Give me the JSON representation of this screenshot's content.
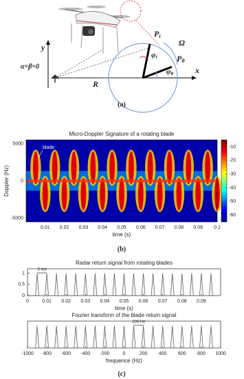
{
  "diagram": {
    "labels": {
      "y_axis": "y",
      "x_axis": "x",
      "angle": "α=β=0",
      "range": "R",
      "p_t": {
        "base": "P",
        "sub": "t"
      },
      "omega": "Ω",
      "p_theta": {
        "base": "P",
        "sub": "θ"
      },
      "phi_t": {
        "base": "φ",
        "sub": "t"
      },
      "phi_theta": {
        "base": "φ",
        "sub": "θ"
      }
    }
  },
  "captions": [
    "(a)",
    "(b)",
    "(c)"
  ],
  "chart_data": [
    {
      "type": "spectrogram",
      "title": "Micro-Doppler Signature of a rotating blade",
      "x_label": "time (s)",
      "y_label": "Doppler (Hz)",
      "annotation": "blade",
      "xlim": [
        0,
        0.1
      ],
      "xticks": [
        0.01,
        0.02,
        0.03,
        0.04,
        0.05,
        0.06,
        0.07,
        0.08,
        0.09,
        0.1
      ],
      "ylim": [
        -5500,
        5500
      ],
      "yticks": [
        -5000,
        0,
        5000
      ],
      "colorbar": {
        "lim": [
          -65,
          -5
        ],
        "ticks": [
          -60,
          -50,
          -40,
          -30,
          -20,
          -10
        ]
      }
    },
    {
      "type": "spikes",
      "title": "Radar return signal from rotating blades",
      "x_label": "time (s)",
      "annotation": "5 ms",
      "color": "#333333",
      "x": [
        0.005,
        0.01,
        0.015,
        0.02,
        0.025,
        0.03,
        0.035,
        0.04,
        0.045,
        0.05,
        0.055,
        0.06,
        0.065,
        0.07,
        0.075,
        0.08,
        0.085,
        0.09,
        0.095
      ],
      "values": [
        1,
        1,
        1,
        1,
        1,
        1,
        1,
        1,
        1,
        1,
        1,
        1,
        1,
        1,
        1,
        1,
        1,
        1,
        1
      ],
      "xlim": [
        0,
        0.1
      ],
      "xticks": [
        0,
        0.01,
        0.02,
        0.03,
        0.04,
        0.05,
        0.06,
        0.07,
        0.08,
        0.09
      ],
      "ylim": [
        0,
        1.2
      ],
      "yticks": [
        0,
        0.5,
        1
      ]
    },
    {
      "type": "spikes",
      "title": "Fourier transform of the blade return signal",
      "x_label": "frequence (Hz)",
      "annotation": "100 Hz",
      "color": "#333333",
      "x": [
        -900,
        -800,
        -700,
        -600,
        -500,
        -400,
        -300,
        -200,
        -100,
        0,
        100,
        200,
        300,
        400,
        500,
        600,
        700,
        800,
        900
      ],
      "values": [
        1,
        1,
        1,
        1,
        1,
        1,
        1,
        1,
        1,
        1,
        1,
        1,
        1,
        1,
        1,
        1,
        1,
        1,
        1
      ],
      "xlim": [
        -1000,
        1000
      ],
      "xticks": [
        -1000,
        -800,
        -600,
        -400,
        -200,
        0,
        200,
        400,
        600,
        800,
        1000
      ],
      "ylim": [
        0,
        1.2
      ]
    }
  ]
}
